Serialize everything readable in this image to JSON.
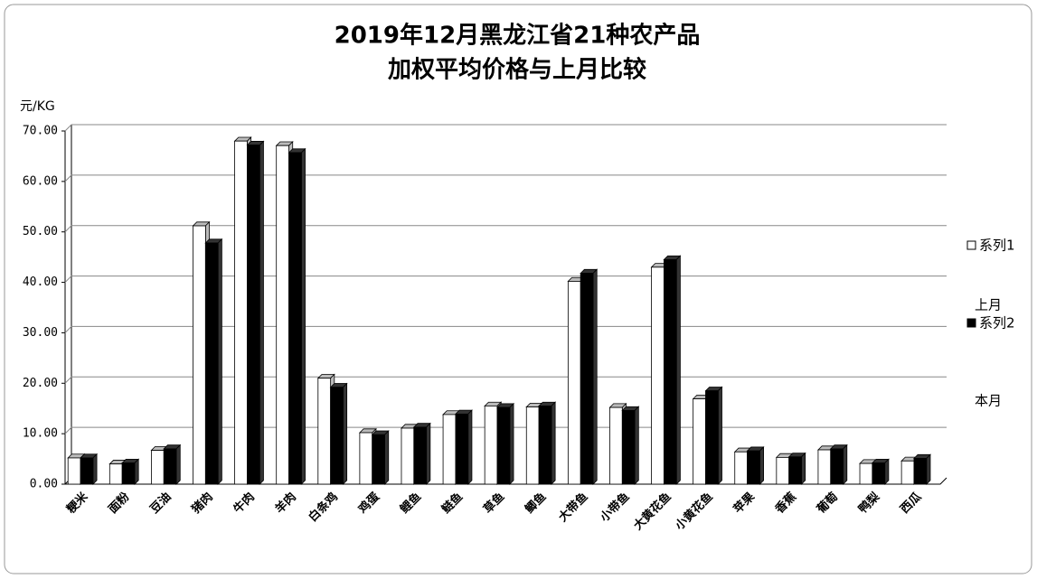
{
  "chart_data": {
    "type": "bar3d",
    "title": [
      "2019年12月黑龙江省21种农产品",
      "加权平均价格与上月比较"
    ],
    "y_label": "元/KG",
    "categories": [
      "粳米",
      "面粉",
      "豆油",
      "猪肉",
      "牛肉",
      "羊肉",
      "白条鸡",
      "鸡蛋",
      "鲤鱼",
      "鲢鱼",
      "草鱼",
      "鲫鱼",
      "大带鱼",
      "小带鱼",
      "大黄花鱼",
      "小黄花鱼",
      "苹果",
      "香蕉",
      "葡萄",
      "鸭梨",
      "西瓜"
    ],
    "series": [
      {
        "name": "系列1",
        "color": "#ffffff",
        "values": [
          5.2,
          4.0,
          6.7,
          51.2,
          68.0,
          67.1,
          21.0,
          10.2,
          11.1,
          13.8,
          15.5,
          15.3,
          40.2,
          15.2,
          43.0,
          16.9,
          6.4,
          5.3,
          6.8,
          4.1,
          4.6
        ]
      },
      {
        "name": "系列2",
        "color": "#000000",
        "values": [
          5.2,
          4.2,
          7.0,
          47.8,
          67.2,
          65.7,
          19.2,
          9.8,
          11.3,
          13.9,
          15.2,
          15.5,
          41.8,
          14.6,
          44.5,
          18.5,
          6.6,
          5.4,
          7.0,
          4.2,
          5.1
        ]
      }
    ],
    "legend_notes": [
      "上月",
      "本月"
    ],
    "ylim": [
      0,
      70
    ],
    "yticks": [
      {
        "value": 0,
        "label": "0.00"
      },
      {
        "value": 10,
        "label": "10.00"
      },
      {
        "value": 20,
        "label": "20.00"
      },
      {
        "value": 30,
        "label": "30.00"
      },
      {
        "value": 40,
        "label": "40.00"
      },
      {
        "value": 50,
        "label": "50.00"
      },
      {
        "value": 60,
        "label": "60.00"
      },
      {
        "value": 70,
        "label": "70.00"
      }
    ],
    "grid": true
  }
}
